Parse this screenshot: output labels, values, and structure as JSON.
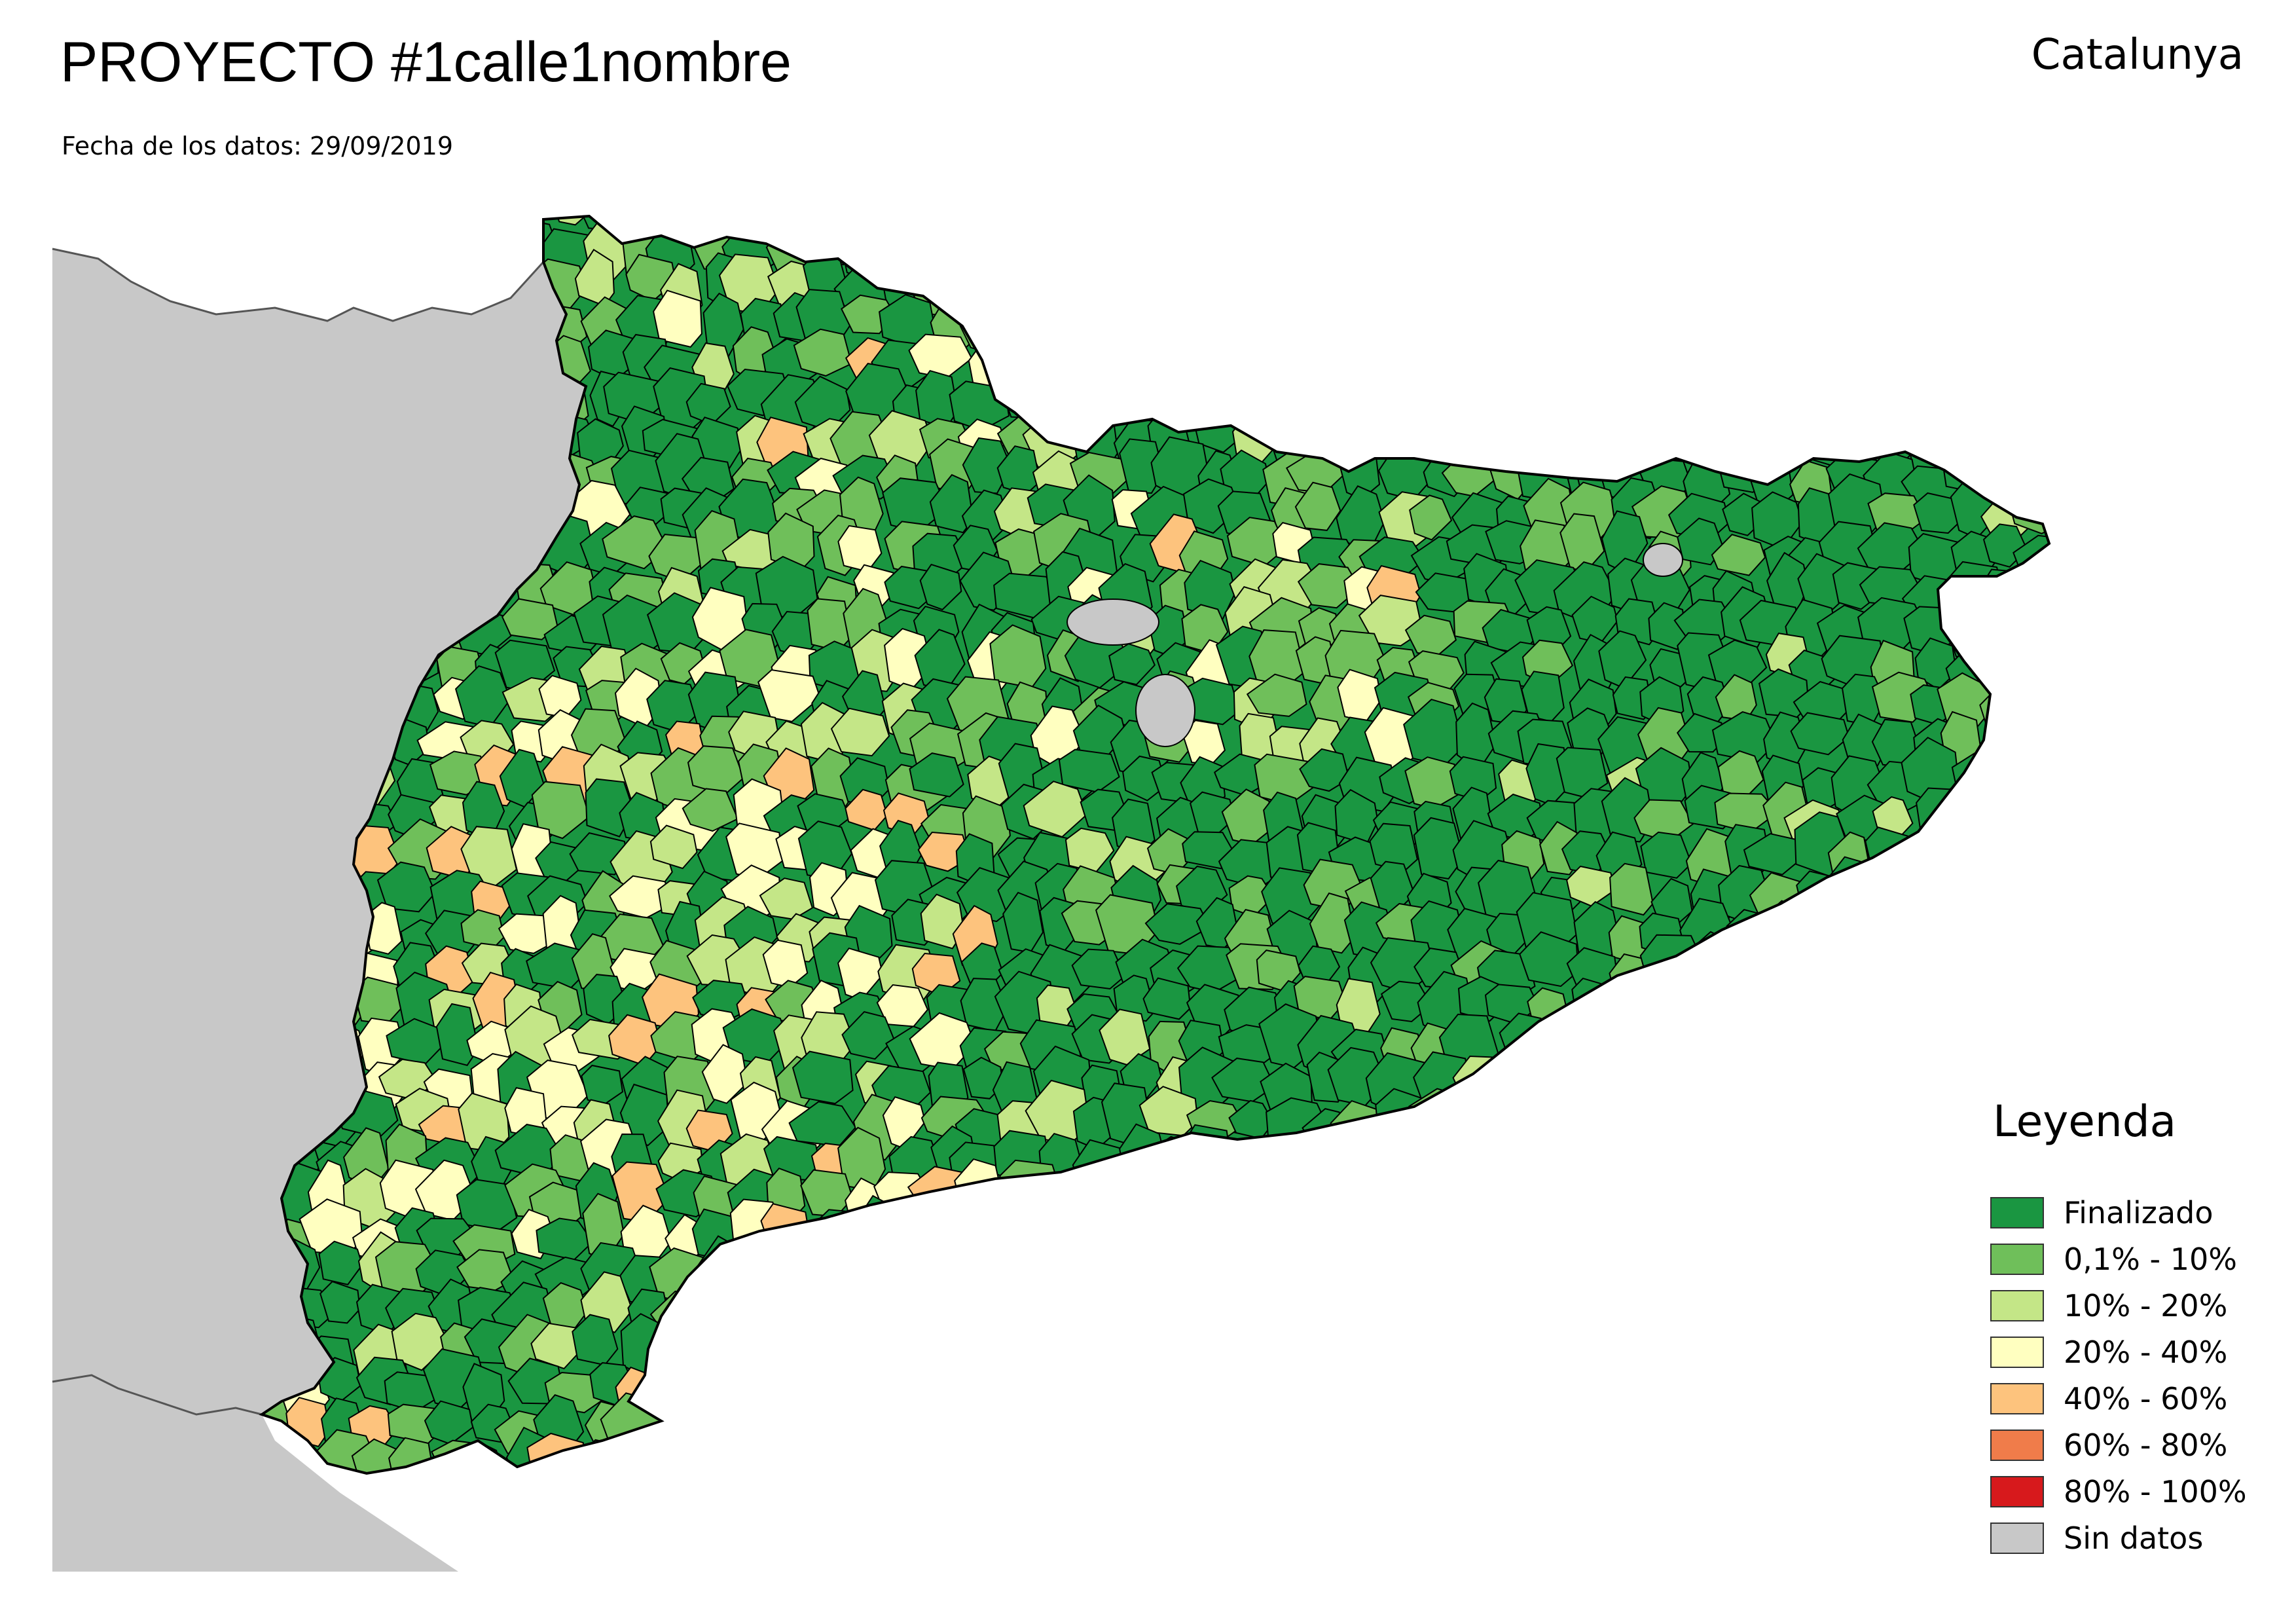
{
  "header": {
    "title": "PROYECTO #1calle1nombre",
    "region": "Catalunya",
    "date_line": "Fecha de los datos: 29/09/2019"
  },
  "legend": {
    "title": "Leyenda",
    "items": [
      {
        "label": "Finalizado",
        "color": "#1a9641"
      },
      {
        "label": "0,1% - 10%",
        "color": "#6fbf5a"
      },
      {
        "label": "10% - 20%",
        "color": "#c4e687"
      },
      {
        "label": "20% - 40%",
        "color": "#ffffc0"
      },
      {
        "label": "40% - 60%",
        "color": "#fdc37d"
      },
      {
        "label": "60% - 80%",
        "color": "#f07c4a"
      },
      {
        "label": "80% - 100%",
        "color": "#d7191c"
      },
      {
        "label": "Sin datos",
        "color": "#c8c8c8"
      }
    ]
  },
  "map": {
    "background_land_color": "#c8c8c8",
    "sea_color": "#ffffff",
    "border_color": "#000000"
  }
}
